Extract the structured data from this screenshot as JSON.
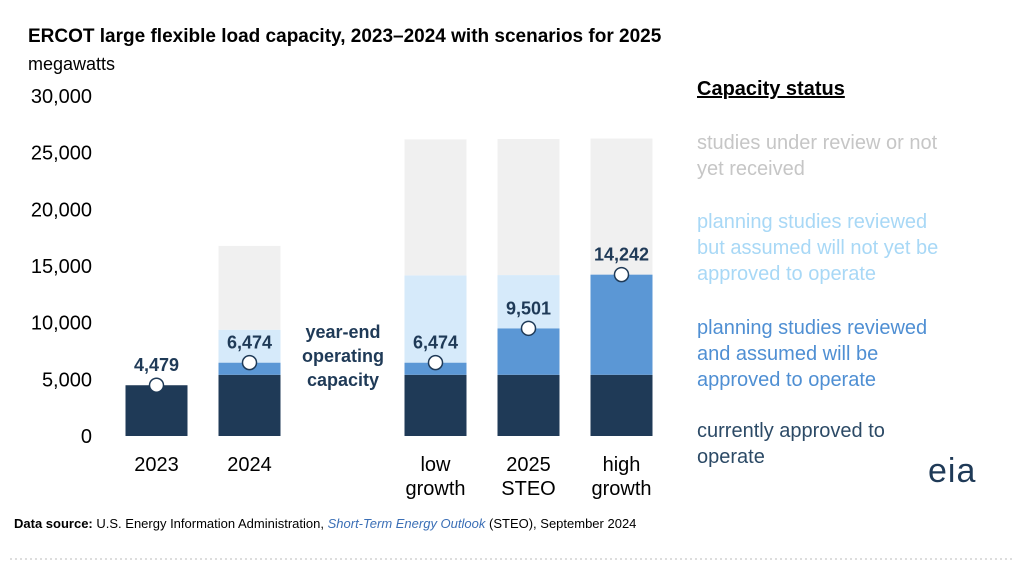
{
  "chart_data": {
    "type": "stacked-bar",
    "title": "ERCOT large flexible load capacity, 2023–2024 with scenarios for 2025",
    "subtitle": "megawatts",
    "categories": [
      "2023",
      "2024",
      null,
      "low growth",
      "2025 STEO",
      "high growth"
    ],
    "series": [
      {
        "name": "currently approved to operate",
        "color": "#1f3a57",
        "label_color": "#2c4a66",
        "values": [
          4479,
          5400,
          null,
          5400,
          5400,
          5400
        ]
      },
      {
        "name": "planning studies reviewed and assumed will be approved to operate",
        "color": "#5b97d5",
        "label_color": "#4f8fd3",
        "values": [
          null,
          1074,
          null,
          1074,
          4101,
          8842
        ]
      },
      {
        "name": "planning studies reviewed but assumed will not yet be approved to operate",
        "color": "#d6eafa",
        "label_color": "#a8d8f6",
        "values": [
          null,
          2900,
          null,
          7700,
          4700,
          null
        ]
      },
      {
        "name": "studies under review or not yet received",
        "color": "#f0f0f0",
        "label_color": "#c6c6c6",
        "values": [
          null,
          7400,
          null,
          12000,
          12000,
          12000
        ]
      }
    ],
    "totals": {
      "values": [
        4479,
        6474,
        null,
        6474,
        9501,
        14242
      ],
      "value_labels": [
        "4,479",
        "6,474",
        null,
        "6,474",
        "9,501",
        "14,242"
      ]
    },
    "annotation": "year-end operating capacity",
    "legend_title": "Capacity status",
    "ylim": [
      0,
      30000
    ],
    "yticks": [
      0,
      {
        "value": 5000,
        "label": "5,000"
      },
      {
        "value": 10000,
        "label": "10,000"
      },
      {
        "value": 15000,
        "label": "15,000"
      },
      {
        "value": 20000,
        "label": "20,000"
      },
      {
        "value": 25000,
        "label": "25,000"
      },
      {
        "value": 30000,
        "label": "30,000"
      }
    ],
    "source": {
      "label": "Data source:",
      "text_before": "U.S. Energy Information Administration,",
      "italic": "Short-Term Energy Outlook",
      "text_after": "(STEO), September 2024"
    },
    "logo": "eia"
  }
}
